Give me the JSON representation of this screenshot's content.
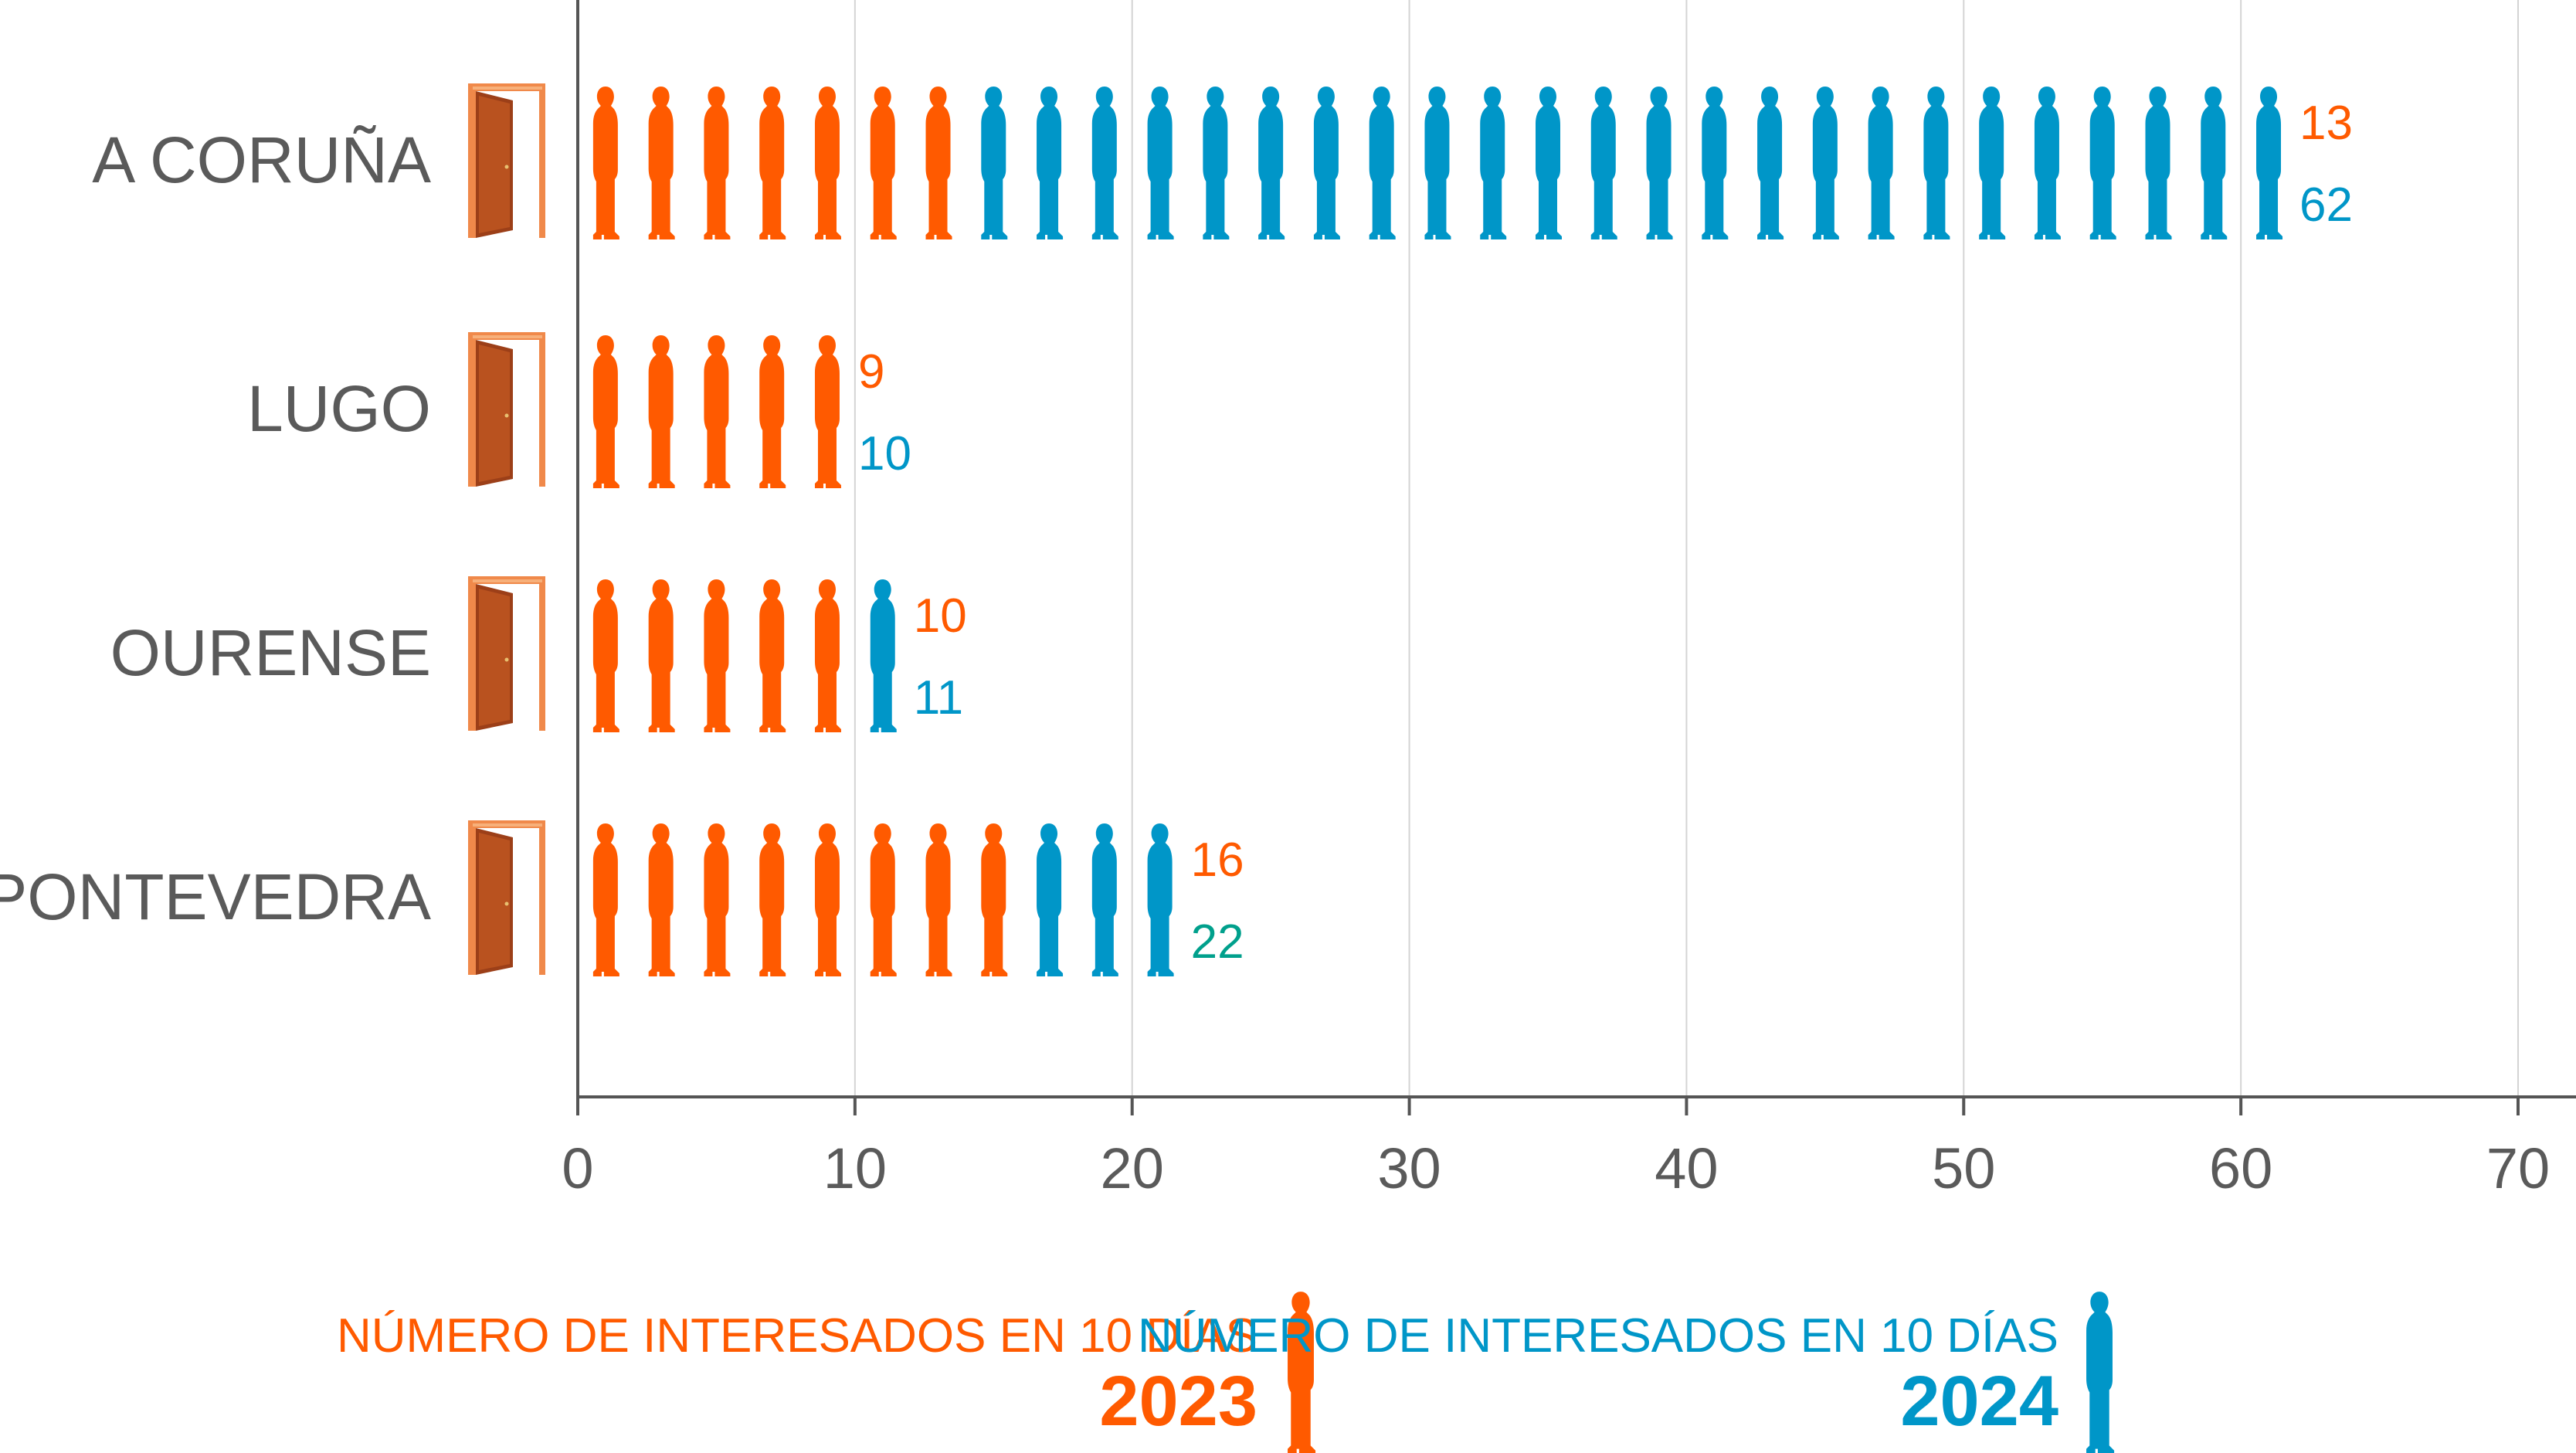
{
  "chart_data": {
    "type": "bar",
    "categories": [
      "A CORUÑA",
      "LUGO",
      "OURENSE",
      "PONTEVEDRA"
    ],
    "series": [
      {
        "name": "2023",
        "values": [
          13,
          9,
          10,
          16
        ],
        "color": "#ff5a00"
      },
      {
        "name": "2024",
        "values": [
          62,
          10,
          11,
          22
        ],
        "color": "#0096c8"
      }
    ],
    "value_label_colors": [
      [
        "#ff5a00",
        "#0096c8"
      ],
      [
        "#ff5a00",
        "#0096c8"
      ],
      [
        "#ff5a00",
        "#0096c8"
      ],
      [
        "#ff5a00",
        "#00a08c"
      ]
    ],
    "xlim": [
      0,
      70
    ],
    "ticks": [
      0,
      10,
      20,
      30,
      40,
      50,
      60,
      70
    ],
    "grid": true,
    "orientation": "horizontal",
    "marker_icon": "person-silhouette-icon",
    "category_icon": "door-icon"
  },
  "legend": [
    {
      "text": "NÚMERO DE INTERESADOS EN 10 DÍAS",
      "year": "2023",
      "color": "#ff5a00"
    },
    {
      "text": "NÚMERO DE INTERESADOS EN 10 DÍAS",
      "year": "2024",
      "color": "#0096c8"
    }
  ]
}
